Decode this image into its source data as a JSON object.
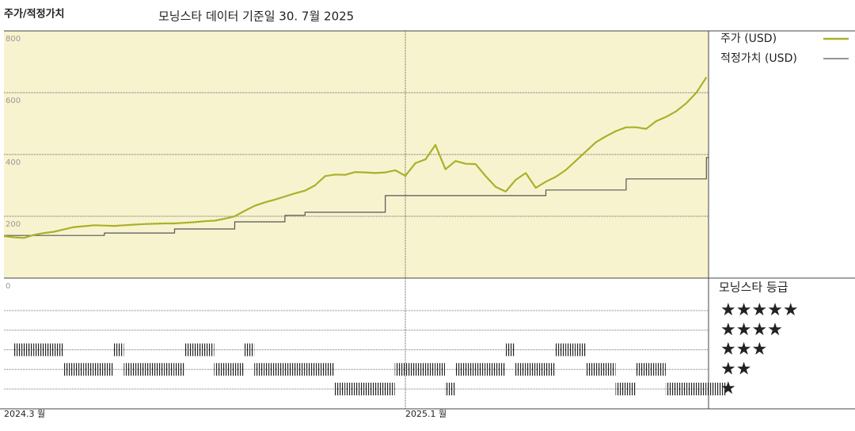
{
  "chart_data": {
    "type": "line",
    "title": "주가/적정가치",
    "subtitle": "모닝스타 데이터 기준일 30. 7월 2025",
    "categories": [
      "2024.3 월",
      null,
      null,
      null,
      null,
      null,
      null,
      null,
      null,
      null,
      null,
      null,
      null,
      null,
      null,
      null,
      null,
      null,
      null,
      null,
      null,
      null,
      null,
      null,
      null,
      null,
      null,
      null,
      null,
      null,
      null,
      null,
      null,
      null,
      null,
      null,
      null,
      null,
      null,
      null,
      "2025.1 월",
      null,
      null,
      null,
      null,
      null,
      null,
      null,
      null,
      null,
      null,
      null,
      null,
      null,
      null,
      null,
      null,
      null,
      null,
      null,
      null,
      null,
      null,
      null,
      null,
      null,
      null,
      null,
      null,
      null,
      null
    ],
    "series": [
      {
        "name": "주가 (USD)",
        "color": "#abb02a",
        "values": [
          136,
          132,
          130,
          140,
          146,
          150,
          158,
          165,
          168,
          171,
          170,
          169,
          171,
          173,
          175,
          176,
          177,
          177,
          179,
          181,
          184,
          186,
          192,
          200,
          218,
          234,
          245,
          254,
          264,
          274,
          283,
          300,
          330,
          335,
          334,
          343,
          342,
          340,
          342,
          349,
          331,
          372,
          384,
          431,
          352,
          379,
          370,
          369,
          330,
          295,
          280,
          318,
          340,
          292,
          312,
          328,
          350,
          380,
          410,
          440,
          459,
          476,
          488,
          488,
          483,
          508,
          522,
          540,
          566,
          600,
          650
        ]
      },
      {
        "name": "적정가치 (USD)",
        "color": "#555555",
        "step": true,
        "values": [
          138,
          138,
          138,
          138,
          138,
          138,
          138,
          138,
          138,
          138,
          146,
          146,
          146,
          146,
          146,
          146,
          146,
          159,
          159,
          159,
          159,
          159,
          159,
          182,
          182,
          182,
          182,
          182,
          203,
          203,
          213,
          213,
          213,
          213,
          213,
          213,
          213,
          213,
          267,
          267,
          267,
          267,
          267,
          267,
          267,
          267,
          267,
          267,
          267,
          267,
          267,
          267,
          267,
          267,
          285,
          285,
          285,
          285,
          285,
          285,
          285,
          285,
          321,
          321,
          321,
          321,
          321,
          321,
          321,
          321,
          390
        ]
      }
    ],
    "ylim": [
      0,
      800
    ],
    "yticks": [
      0,
      200,
      400,
      600,
      800
    ],
    "grid": true,
    "legend": "right",
    "rating": {
      "title": "모닝스타 등급",
      "levels": [
        5,
        4,
        3,
        2,
        1
      ],
      "level_labels": [
        "★★★★★",
        "★★★★",
        "★★★",
        "★★",
        "★"
      ],
      "values": [
        3,
        3,
        3,
        3,
        3,
        2,
        2,
        2,
        2,
        2,
        3,
        2,
        2,
        2,
        2,
        2,
        2,
        3,
        3,
        3,
        2,
        2,
        2,
        3,
        2,
        2,
        2,
        2,
        2,
        2,
        2,
        2,
        1,
        1,
        1,
        1,
        1,
        1,
        2,
        2,
        2,
        2,
        2,
        1,
        2,
        2,
        2,
        2,
        2,
        3,
        2,
        2,
        2,
        2,
        3,
        3,
        3,
        2,
        2,
        2,
        1,
        1,
        2,
        2,
        2,
        1,
        1,
        1,
        1,
        1,
        1
      ]
    }
  }
}
